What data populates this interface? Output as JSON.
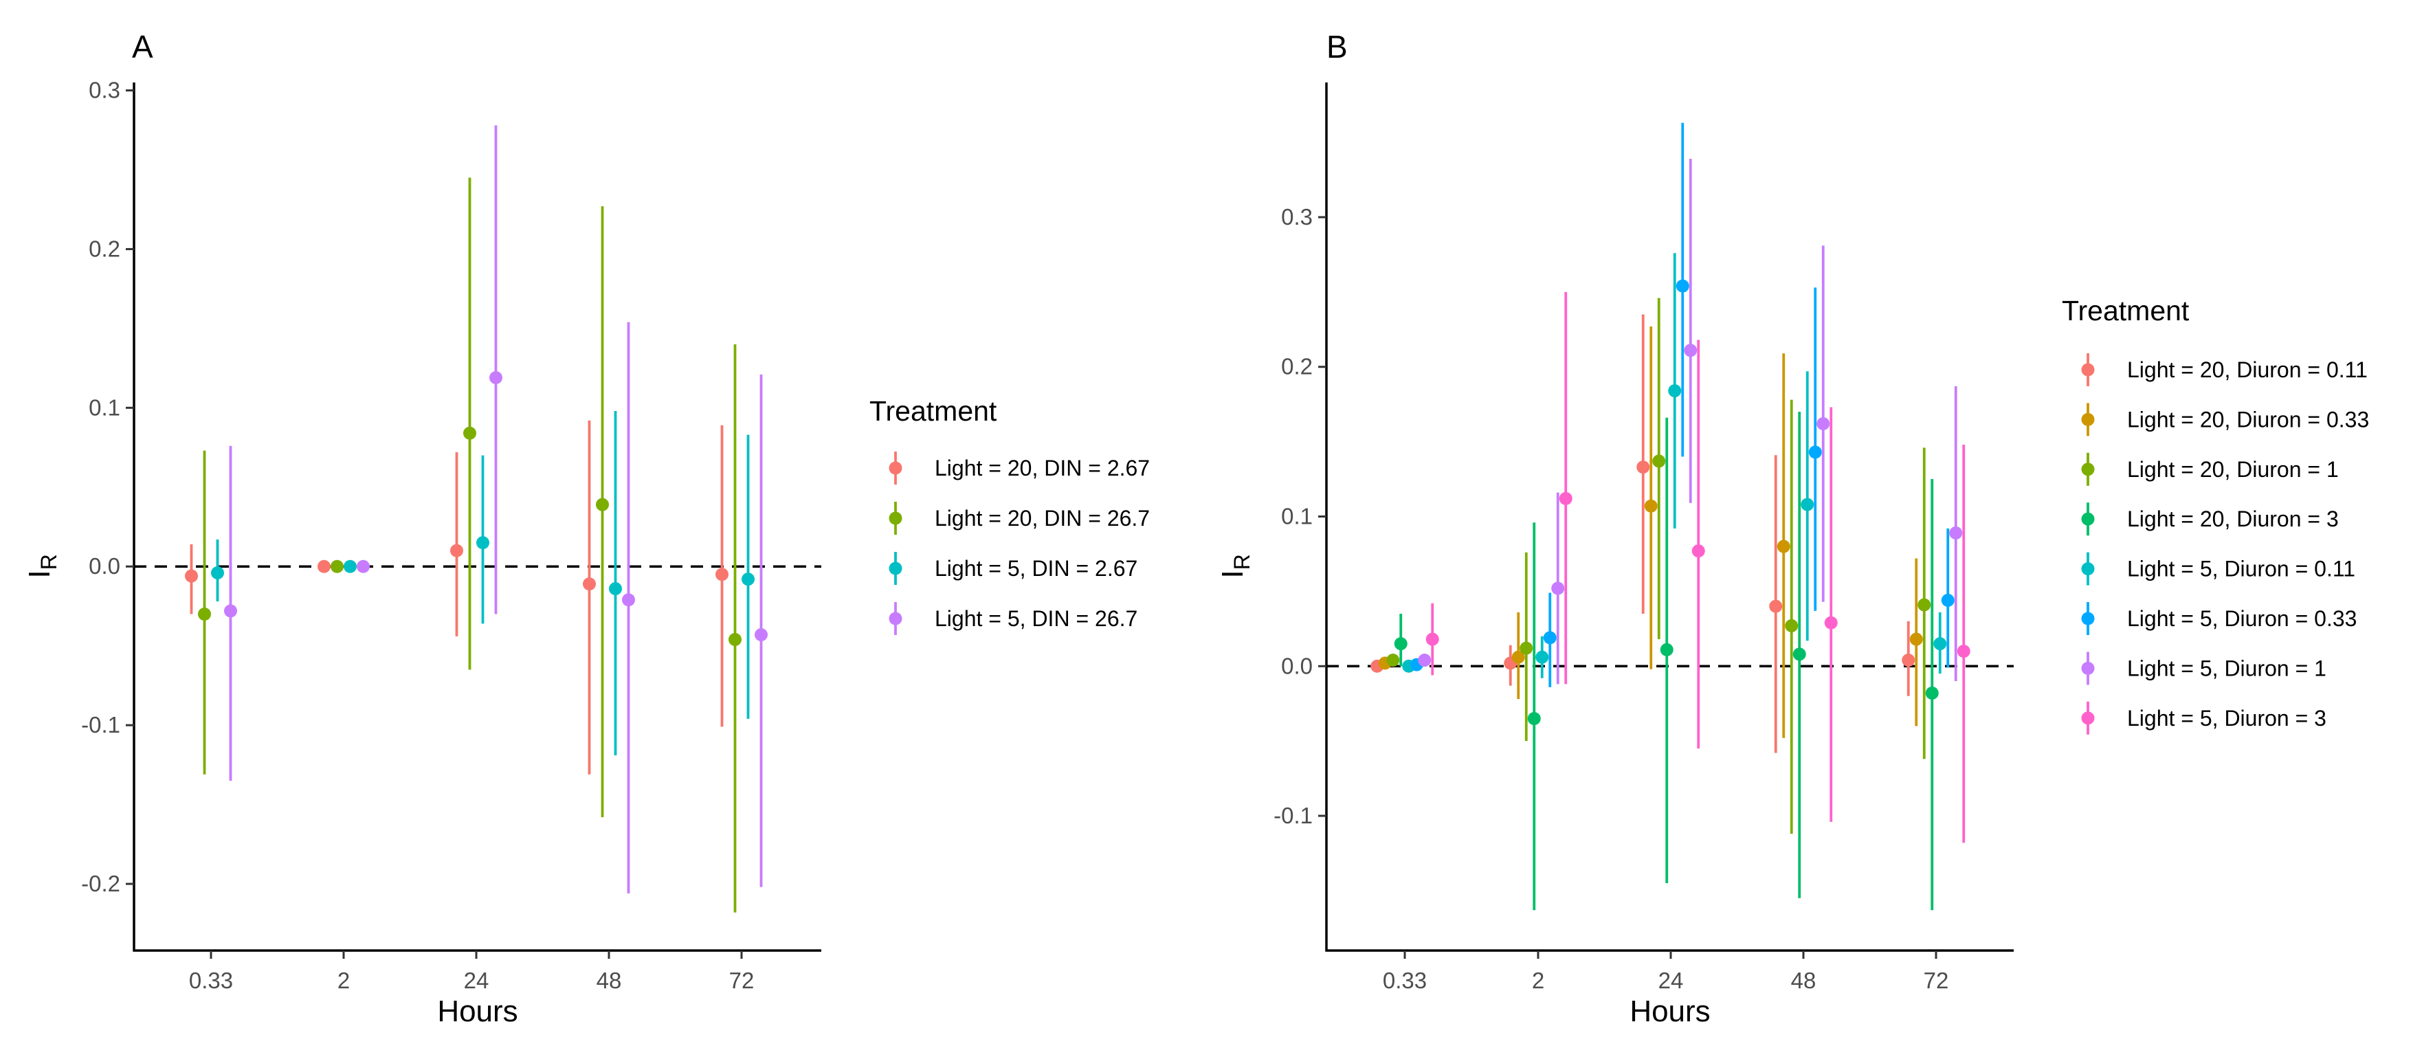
{
  "chart_data": [
    {
      "panel": "A",
      "type": "scatter",
      "xlabel": "Hours",
      "ylabel_main": "I",
      "ylabel_sub": "R",
      "categories": [
        "0.33",
        "2",
        "24",
        "48",
        "72"
      ],
      "yticks": [
        "0.3",
        "0.2",
        "0.1",
        "0.0",
        "-0.1",
        "-0.2"
      ],
      "ylim": [
        -0.242,
        0.305
      ],
      "reference_line": 0,
      "legend_title": "Treatment",
      "legend_position": "right",
      "series": [
        {
          "name": "Light = 20, DIN = 2.67",
          "color": "#F8766D",
          "y": [
            -0.006,
            0.0,
            0.01,
            -0.011,
            -0.005
          ],
          "low": [
            -0.03,
            0.0,
            -0.044,
            -0.131,
            -0.101
          ],
          "high": [
            0.014,
            0.0,
            0.072,
            0.092,
            0.089
          ]
        },
        {
          "name": "Light = 20, DIN = 26.7",
          "color": "#7CAE00",
          "y": [
            -0.03,
            0.0,
            0.084,
            0.039,
            -0.046
          ],
          "low": [
            -0.131,
            0.0,
            -0.065,
            -0.158,
            -0.218
          ],
          "high": [
            0.073,
            0.0,
            0.245,
            0.227,
            0.14
          ]
        },
        {
          "name": "Light = 5, DIN = 2.67",
          "color": "#00BFC4",
          "y": [
            -0.004,
            0.0,
            0.015,
            -0.014,
            -0.008
          ],
          "low": [
            -0.022,
            0.0,
            -0.036,
            -0.119,
            -0.096
          ],
          "high": [
            0.017,
            0.0,
            0.07,
            0.098,
            0.083
          ]
        },
        {
          "name": "Light = 5, DIN = 26.7",
          "color": "#C77CFF",
          "y": [
            -0.028,
            0.0,
            0.119,
            -0.021,
            -0.043
          ],
          "low": [
            -0.135,
            0.0,
            -0.03,
            -0.206,
            -0.202
          ],
          "high": [
            0.076,
            0.0,
            0.278,
            0.154,
            0.121
          ]
        }
      ]
    },
    {
      "panel": "B",
      "type": "scatter",
      "xlabel": "Hours",
      "ylabel_main": "I",
      "ylabel_sub": "R",
      "categories": [
        "0.33",
        "2",
        "24",
        "48",
        "72"
      ],
      "yticks": [
        "0.3",
        "0.2",
        "0.1",
        "0.0",
        "-0.1"
      ],
      "ylim": [
        -0.19,
        0.39
      ],
      "reference_line": 0,
      "legend_title": "Treatment",
      "legend_position": "right",
      "series": [
        {
          "name": "Light = 20, Diuron = 0.11",
          "color": "#F8766D",
          "y": [
            0.0,
            0.002,
            0.133,
            0.04,
            0.004
          ],
          "low": [
            0.0,
            -0.013,
            0.035,
            -0.058,
            -0.02
          ],
          "high": [
            0.0,
            0.014,
            0.235,
            0.141,
            0.03
          ]
        },
        {
          "name": "Light = 20, Diuron = 0.33",
          "color": "#CD9600",
          "y": [
            0.002,
            0.006,
            0.107,
            0.08,
            0.018
          ],
          "low": [
            0.0,
            -0.022,
            -0.002,
            -0.048,
            -0.04
          ],
          "high": [
            0.004,
            0.036,
            0.227,
            0.209,
            0.072
          ]
        },
        {
          "name": "Light = 20, Diuron = 1",
          "color": "#7CAE00",
          "y": [
            0.004,
            0.012,
            0.137,
            0.027,
            0.041
          ],
          "low": [
            0.0,
            -0.05,
            0.018,
            -0.112,
            -0.062
          ],
          "high": [
            0.008,
            0.076,
            0.246,
            0.178,
            0.146
          ]
        },
        {
          "name": "Light = 20, Diuron = 3",
          "color": "#00BE67",
          "y": [
            0.015,
            -0.035,
            0.011,
            0.008,
            -0.018
          ],
          "low": [
            0.0,
            -0.163,
            -0.145,
            -0.155,
            -0.163
          ],
          "high": [
            0.035,
            0.096,
            0.166,
            0.17,
            0.125
          ]
        },
        {
          "name": "Light = 5, Diuron = 0.11",
          "color": "#00BFC4",
          "y": [
            0.0,
            0.006,
            0.184,
            0.108,
            0.015
          ],
          "low": [
            0.0,
            -0.008,
            0.092,
            0.017,
            -0.005
          ],
          "high": [
            0.0,
            0.02,
            0.276,
            0.197,
            0.036
          ]
        },
        {
          "name": "Light = 5, Diuron = 0.33",
          "color": "#00A9FF",
          "y": [
            0.001,
            0.019,
            0.254,
            0.143,
            0.044
          ],
          "low": [
            0.0,
            -0.014,
            0.14,
            0.037,
            -0.001
          ],
          "high": [
            0.003,
            0.049,
            0.363,
            0.253,
            0.092
          ]
        },
        {
          "name": "Light = 5, Diuron = 1",
          "color": "#C77CFF",
          "y": [
            0.004,
            0.052,
            0.211,
            0.162,
            0.089
          ],
          "low": [
            0.0,
            -0.012,
            0.109,
            0.043,
            -0.01
          ],
          "high": [
            0.008,
            0.116,
            0.339,
            0.281,
            0.187
          ]
        },
        {
          "name": "Light = 5, Diuron = 3",
          "color": "#FF61CC",
          "y": [
            0.018,
            0.112,
            0.077,
            0.029,
            0.01
          ],
          "low": [
            -0.006,
            -0.012,
            -0.055,
            -0.104,
            -0.118
          ],
          "high": [
            0.042,
            0.25,
            0.218,
            0.173,
            0.148
          ]
        }
      ]
    }
  ]
}
